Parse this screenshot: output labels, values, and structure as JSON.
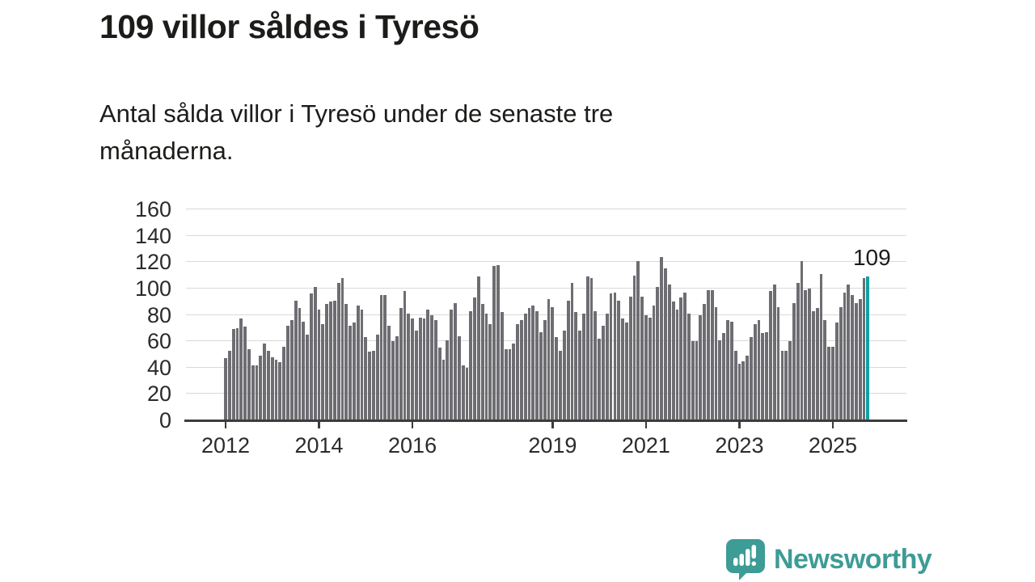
{
  "title": "109 villor såldes i Tyresö",
  "subtitle": {
    "lines": [
      "Antal sålda villor i Tyresö under de senaste tre",
      "månaderna."
    ]
  },
  "annotation": {
    "label": "109"
  },
  "footer": {
    "brand": "Newsworthy",
    "icon": "newsworthy-chart-bubble-icon"
  },
  "colors": {
    "bar": "#6d6d72",
    "highlight": "#11a0a4",
    "grid": "#d9d9d9",
    "axis": "#3c3c3c",
    "text": "#1c1c1a",
    "brand": "#3d9c95"
  },
  "chart_data": {
    "type": "bar",
    "title": "109 villor såldes i Tyresö",
    "subtitle": "Antal sålda villor i Tyresö under de senaste tre månaderna.",
    "frequency": "monthly",
    "x_start": "2012-01",
    "x_end": "2025-10",
    "ylim": [
      0,
      160
    ],
    "y_ticks": [
      0,
      20,
      40,
      60,
      80,
      100,
      120,
      140,
      160
    ],
    "x_tick_labels": [
      "2012",
      "2014",
      "2016",
      "2019",
      "2021",
      "2023",
      "2025"
    ],
    "grid": true,
    "legend": false,
    "highlight_last_value": 109,
    "values": [
      47,
      53,
      69,
      70,
      77,
      71,
      54,
      42,
      42,
      49,
      58,
      53,
      48,
      46,
      44,
      56,
      72,
      76,
      91,
      85,
      75,
      65,
      96,
      101,
      84,
      73,
      88,
      90,
      91,
      104,
      108,
      88,
      72,
      74,
      87,
      84,
      63,
      52,
      53,
      65,
      95,
      95,
      72,
      60,
      64,
      85,
      98,
      81,
      77,
      68,
      78,
      77,
      84,
      80,
      76,
      55,
      46,
      61,
      84,
      89,
      64,
      42,
      40,
      83,
      93,
      109,
      88,
      81,
      73,
      117,
      118,
      82,
      54,
      54,
      58,
      73,
      76,
      81,
      85,
      87,
      83,
      67,
      76,
      92,
      86,
      63,
      53,
      68,
      91,
      104,
      82,
      68,
      81,
      109,
      108,
      83,
      62,
      72,
      81,
      96,
      97,
      91,
      77,
      74,
      94,
      110,
      121,
      94,
      80,
      78,
      87,
      101,
      124,
      115,
      103,
      90,
      84,
      93,
      97,
      81,
      60,
      60,
      80,
      88,
      99,
      99,
      86,
      61,
      66,
      76,
      75,
      53,
      43,
      45,
      49,
      63,
      73,
      76,
      66,
      67,
      98,
      103,
      86,
      53,
      53,
      60,
      89,
      104,
      121,
      99,
      100,
      83,
      85,
      111,
      76,
      56,
      56,
      74,
      86,
      97,
      103,
      95,
      89,
      92,
      108,
      109
    ]
  }
}
